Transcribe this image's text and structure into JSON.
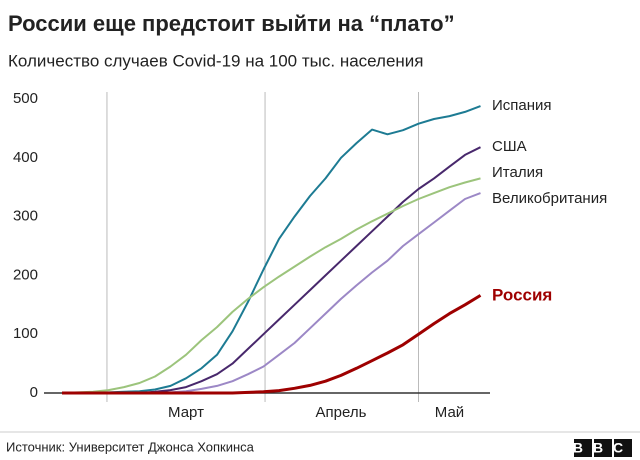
{
  "chart_data": {
    "type": "line",
    "title": "России еще предстоит выйти на “плато”",
    "subtitle": "Количество случаев Covid-19 на 100 тыс. населения",
    "source": "Источник: Университет Джонса Хопкинса",
    "logo": "BBC",
    "categories": [
      null,
      null,
      null,
      null,
      null,
      null,
      null,
      null,
      "Март",
      null,
      null,
      null,
      null,
      null,
      null,
      null,
      null,
      null,
      "Апрель",
      null,
      null,
      null,
      null,
      null,
      null,
      "Май",
      null,
      null
    ],
    "series": [
      {
        "name": "Испания",
        "color": "#1d7b93",
        "values": [
          0,
          0,
          0,
          1,
          2,
          3,
          6,
          12,
          25,
          42,
          65,
          105,
          155,
          210,
          262,
          300,
          335,
          365,
          400,
          425,
          448,
          440,
          447,
          458,
          466,
          471,
          478,
          488
        ]
      },
      {
        "name": "США",
        "color": "#48286c",
        "values": [
          0,
          0,
          0,
          0,
          0,
          0,
          2,
          5,
          10,
          20,
          32,
          50,
          75,
          100,
          125,
          150,
          175,
          200,
          225,
          250,
          275,
          300,
          325,
          347,
          365,
          385,
          405,
          418
        ]
      },
      {
        "name": "Италия",
        "color": "#9cc47c",
        "values": [
          0,
          1,
          2,
          5,
          10,
          17,
          28,
          45,
          65,
          90,
          112,
          138,
          160,
          180,
          198,
          215,
          232,
          248,
          262,
          278,
          292,
          305,
          318,
          330,
          340,
          350,
          358,
          365
        ]
      },
      {
        "name": "Великобритания",
        "color": "#9c88c6",
        "values": [
          0,
          0,
          0,
          0,
          0,
          0,
          0,
          1,
          3,
          7,
          12,
          20,
          32,
          45,
          65,
          85,
          110,
          135,
          160,
          183,
          205,
          225,
          250,
          270,
          290,
          310,
          330,
          340
        ]
      },
      {
        "name": "Россия",
        "color": "#9e0000",
        "values": [
          0,
          0,
          0,
          0,
          0,
          0,
          0,
          0,
          0,
          0,
          0,
          0,
          1,
          2,
          4,
          8,
          13,
          20,
          30,
          42,
          55,
          68,
          82,
          100,
          118,
          135,
          150,
          166
        ]
      }
    ],
    "ylim": [
      0,
      500
    ],
    "yticks": [
      0,
      100,
      200,
      300,
      400,
      500
    ]
  }
}
